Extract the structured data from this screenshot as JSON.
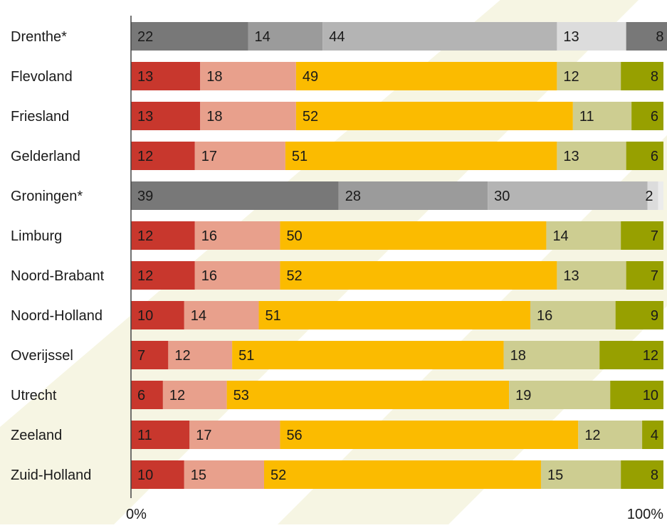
{
  "chart_data": {
    "type": "bar",
    "orientation": "horizontal",
    "stacked": true,
    "normalized_percent": true,
    "title": "",
    "xlabel": "",
    "ylabel": "",
    "xlim": [
      0,
      100
    ],
    "x_tick_labels": [
      "0%",
      "100%"
    ],
    "grid": false,
    "legend": "none",
    "categories": [
      "Drenthe*",
      "Flevoland",
      "Friesland",
      "Gelderland",
      "Groningen*",
      "Limburg",
      "Noord-Brabant",
      "Noord-Holland",
      "Overijssel",
      "Utrecht",
      "Zeeland",
      "Zuid-Holland"
    ],
    "greyed_categories": [
      "Drenthe*",
      "Groningen*"
    ],
    "rows": [
      {
        "label": "Drenthe*",
        "values": [
          22,
          14,
          44,
          13,
          8
        ]
      },
      {
        "label": "Flevoland",
        "values": [
          13,
          18,
          49,
          12,
          8
        ]
      },
      {
        "label": "Friesland",
        "values": [
          13,
          18,
          52,
          11,
          6
        ]
      },
      {
        "label": "Gelderland",
        "values": [
          12,
          17,
          51,
          13,
          6
        ]
      },
      {
        "label": "Groningen*",
        "values": [
          39,
          28,
          30,
          2
        ]
      },
      {
        "label": "Limburg",
        "values": [
          12,
          16,
          50,
          14,
          7
        ]
      },
      {
        "label": "Noord-Brabant",
        "values": [
          12,
          16,
          52,
          13,
          7
        ]
      },
      {
        "label": "Noord-Holland",
        "values": [
          10,
          14,
          51,
          16,
          9
        ]
      },
      {
        "label": "Overijssel",
        "values": [
          7,
          12,
          51,
          18,
          12
        ]
      },
      {
        "label": "Utrecht",
        "values": [
          6,
          12,
          53,
          19,
          10
        ]
      },
      {
        "label": "Zeeland",
        "values": [
          11,
          17,
          56,
          12,
          4
        ]
      },
      {
        "label": "Zuid-Holland",
        "values": [
          10,
          15,
          52,
          15,
          8
        ]
      }
    ],
    "colors": {
      "segments": [
        "#c8372d",
        "#e8a08c",
        "#fbbb00",
        "#cdcd91",
        "#97a000"
      ],
      "grey_segments": [
        "#787878",
        "#9b9b9b",
        "#b4b4b4",
        "#dcdcdc"
      ],
      "background_stripes": "#f6f5e3",
      "axis_line": "#444444",
      "label_text": "#1a1a1a"
    }
  }
}
